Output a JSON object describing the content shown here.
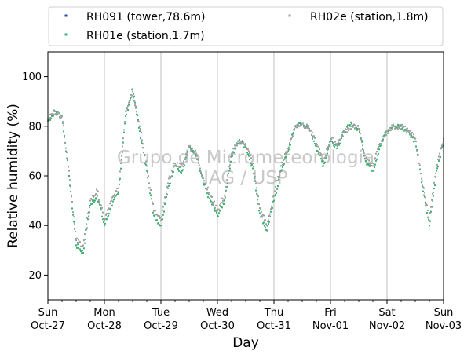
{
  "chart_data": {
    "type": "scatter",
    "xlabel": "Day",
    "ylabel": "Relative humidity (%)",
    "xlim": [
      "2019-10-27",
      "2019-11-03"
    ],
    "ylim": [
      10,
      110
    ],
    "yticks": [
      20,
      40,
      60,
      80,
      100
    ],
    "xtick_labels": [
      [
        "Sun",
        "Oct-27"
      ],
      [
        "Mon",
        "Oct-28"
      ],
      [
        "Tue",
        "Oct-29"
      ],
      [
        "Wed",
        "Oct-30"
      ],
      [
        "Thu",
        "Oct-31"
      ],
      [
        "Fri",
        "Nov-01"
      ],
      [
        "Sat",
        "Nov-02"
      ],
      [
        "Sun",
        "Nov-03"
      ]
    ],
    "grid": "vertical day lines",
    "legend_position": "top, above plot, 2 columns",
    "watermark": [
      "Grupo de Micrometeorologia",
      "IAG / USP"
    ],
    "series": [
      {
        "name": "RH091 (tower,78.6m)",
        "color": "#1f4e9e",
        "points": []
      },
      {
        "name": "RH01e (station,1.7m)",
        "color": "#3cb371",
        "points": [
          [
            "2019-10-27T00:00",
            82
          ],
          [
            "2019-10-27T03:00",
            86
          ],
          [
            "2019-10-27T06:00",
            84
          ],
          [
            "2019-10-27T09:00",
            60
          ],
          [
            "2019-10-27T12:00",
            32
          ],
          [
            "2019-10-27T15:00",
            29
          ],
          [
            "2019-10-27T18:00",
            48
          ],
          [
            "2019-10-27T21:00",
            52
          ],
          [
            "2019-10-28T00:00",
            40
          ],
          [
            "2019-10-28T03:00",
            48
          ],
          [
            "2019-10-28T06:00",
            53
          ],
          [
            "2019-10-28T09:00",
            84
          ],
          [
            "2019-10-28T12:00",
            95
          ],
          [
            "2019-10-28T15:00",
            78
          ],
          [
            "2019-10-28T18:00",
            62
          ],
          [
            "2019-10-28T21:00",
            44
          ],
          [
            "2019-10-29T00:00",
            40
          ],
          [
            "2019-10-29T03:00",
            55
          ],
          [
            "2019-10-29T06:00",
            64
          ],
          [
            "2019-10-29T09:00",
            62
          ],
          [
            "2019-10-29T12:00",
            72
          ],
          [
            "2019-10-29T15:00",
            68
          ],
          [
            "2019-10-29T18:00",
            57
          ],
          [
            "2019-10-29T21:00",
            50
          ],
          [
            "2019-10-30T00:00",
            44
          ],
          [
            "2019-10-30T03:00",
            50
          ],
          [
            "2019-10-30T06:00",
            68
          ],
          [
            "2019-10-30T09:00",
            74
          ],
          [
            "2019-10-30T12:00",
            72
          ],
          [
            "2019-10-30T15:00",
            63
          ],
          [
            "2019-10-30T18:00",
            45
          ],
          [
            "2019-10-30T21:00",
            38
          ],
          [
            "2019-10-31T00:00",
            50
          ],
          [
            "2019-10-31T03:00",
            62
          ],
          [
            "2019-10-31T06:00",
            70
          ],
          [
            "2019-10-31T09:00",
            80
          ],
          [
            "2019-10-31T12:00",
            81
          ],
          [
            "2019-10-31T15:00",
            79
          ],
          [
            "2019-10-31T18:00",
            72
          ],
          [
            "2019-10-31T21:00",
            64
          ],
          [
            "2019-11-01T00:00",
            74
          ],
          [
            "2019-11-01T03:00",
            72
          ],
          [
            "2019-11-01T06:00",
            78
          ],
          [
            "2019-11-01T09:00",
            81
          ],
          [
            "2019-11-01T12:00",
            79
          ],
          [
            "2019-11-01T15:00",
            66
          ],
          [
            "2019-11-01T18:00",
            62
          ],
          [
            "2019-11-01T21:00",
            72
          ],
          [
            "2019-11-02T00:00",
            78
          ],
          [
            "2019-11-02T03:00",
            80
          ],
          [
            "2019-11-02T06:00",
            80
          ],
          [
            "2019-11-02T09:00",
            78
          ],
          [
            "2019-11-02T12:00",
            74
          ],
          [
            "2019-11-02T15:00",
            56
          ],
          [
            "2019-11-02T18:00",
            40
          ],
          [
            "2019-11-02T21:00",
            62
          ],
          [
            "2019-11-03T00:00",
            74
          ]
        ]
      },
      {
        "name": "RH02e (station,1.8m)",
        "color": "#a0a0a0",
        "points": [
          [
            "2019-10-27T00:00",
            83
          ],
          [
            "2019-10-27T03:00",
            86
          ],
          [
            "2019-10-27T06:00",
            84
          ],
          [
            "2019-10-27T09:00",
            62
          ],
          [
            "2019-10-27T12:00",
            34
          ],
          [
            "2019-10-27T15:00",
            32
          ],
          [
            "2019-10-27T18:00",
            50
          ],
          [
            "2019-10-27T21:00",
            54
          ],
          [
            "2019-10-28T00:00",
            42
          ],
          [
            "2019-10-28T03:00",
            50
          ],
          [
            "2019-10-28T06:00",
            55
          ],
          [
            "2019-10-28T09:00",
            86
          ],
          [
            "2019-10-28T12:00",
            94
          ],
          [
            "2019-10-28T15:00",
            80
          ],
          [
            "2019-10-28T18:00",
            64
          ],
          [
            "2019-10-28T21:00",
            46
          ],
          [
            "2019-10-29T00:00",
            42
          ],
          [
            "2019-10-29T03:00",
            57
          ],
          [
            "2019-10-29T06:00",
            65
          ],
          [
            "2019-10-29T09:00",
            64
          ],
          [
            "2019-10-29T12:00",
            72
          ],
          [
            "2019-10-29T15:00",
            69
          ],
          [
            "2019-10-29T18:00",
            59
          ],
          [
            "2019-10-29T21:00",
            52
          ],
          [
            "2019-10-30T00:00",
            46
          ],
          [
            "2019-10-30T03:00",
            52
          ],
          [
            "2019-10-30T06:00",
            69
          ],
          [
            "2019-10-30T09:00",
            74
          ],
          [
            "2019-10-30T12:00",
            73
          ],
          [
            "2019-10-30T15:00",
            65
          ],
          [
            "2019-10-30T18:00",
            47
          ],
          [
            "2019-10-30T21:00",
            40
          ],
          [
            "2019-10-31T00:00",
            52
          ],
          [
            "2019-10-31T03:00",
            64
          ],
          [
            "2019-10-31T06:00",
            71
          ],
          [
            "2019-10-31T09:00",
            80
          ],
          [
            "2019-10-31T12:00",
            81
          ],
          [
            "2019-10-31T15:00",
            79
          ],
          [
            "2019-10-31T18:00",
            73
          ],
          [
            "2019-10-31T21:00",
            66
          ],
          [
            "2019-11-01T00:00",
            75
          ],
          [
            "2019-11-01T03:00",
            73
          ],
          [
            "2019-11-01T06:00",
            78
          ],
          [
            "2019-11-01T09:00",
            80
          ],
          [
            "2019-11-01T12:00",
            79
          ],
          [
            "2019-11-01T15:00",
            67
          ],
          [
            "2019-11-01T18:00",
            64
          ],
          [
            "2019-11-01T21:00",
            73
          ],
          [
            "2019-11-02T00:00",
            78
          ],
          [
            "2019-11-02T03:00",
            80
          ],
          [
            "2019-11-02T06:00",
            80
          ],
          [
            "2019-11-02T09:00",
            78
          ],
          [
            "2019-11-02T12:00",
            75
          ],
          [
            "2019-11-02T15:00",
            58
          ],
          [
            "2019-11-02T18:00",
            42
          ],
          [
            "2019-11-02T21:00",
            64
          ],
          [
            "2019-11-03T00:00",
            75
          ]
        ]
      }
    ]
  }
}
